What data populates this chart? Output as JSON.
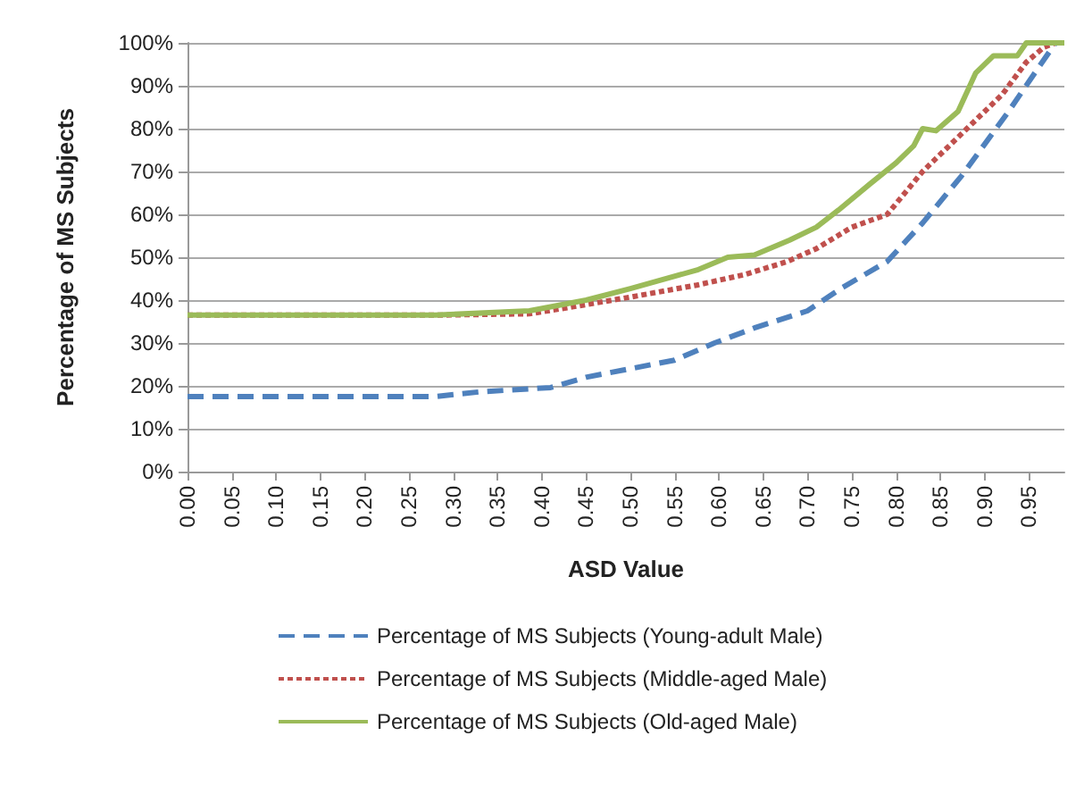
{
  "chart_data": {
    "type": "line",
    "xlabel": "ASD Value",
    "ylabel": "Percentage of MS Subjects",
    "xlim": [
      0,
      0.99
    ],
    "xticks": [
      {
        "value": 0,
        "label": "0.00"
      },
      {
        "value": 0.05,
        "label": "0.05"
      },
      {
        "value": 0.1,
        "label": "0.10"
      },
      {
        "value": 0.15,
        "label": "0.15"
      },
      {
        "value": 0.2,
        "label": "0.20"
      },
      {
        "value": 0.25,
        "label": "0.25"
      },
      {
        "value": 0.3,
        "label": "0.30"
      },
      {
        "value": 0.35,
        "label": "0.35"
      },
      {
        "value": 0.4,
        "label": "0.40"
      },
      {
        "value": 0.45,
        "label": "0.45"
      },
      {
        "value": 0.5,
        "label": "0.50"
      },
      {
        "value": 0.55,
        "label": "0.55"
      },
      {
        "value": 0.6,
        "label": "0.60"
      },
      {
        "value": 0.65,
        "label": "0.65"
      },
      {
        "value": 0.7,
        "label": "0.70"
      },
      {
        "value": 0.75,
        "label": "0.75"
      },
      {
        "value": 0.8,
        "label": "0.80"
      },
      {
        "value": 0.85,
        "label": "0.85"
      },
      {
        "value": 0.9,
        "label": "0.90"
      },
      {
        "value": 0.95,
        "label": "0.95"
      }
    ],
    "ylim": [
      0,
      100
    ],
    "yticks": [
      {
        "value": 0,
        "label": "0%"
      },
      {
        "value": 10,
        "label": "10%"
      },
      {
        "value": 20,
        "label": "20%"
      },
      {
        "value": 30,
        "label": "30%"
      },
      {
        "value": 40,
        "label": "40%"
      },
      {
        "value": 50,
        "label": "50%"
      },
      {
        "value": 60,
        "label": "60%"
      },
      {
        "value": 70,
        "label": "70%"
      },
      {
        "value": 80,
        "label": "80%"
      },
      {
        "value": 90,
        "label": "90%"
      },
      {
        "value": 100,
        "label": "100%"
      }
    ],
    "grid": "y",
    "legend": "bottom",
    "marker": "none",
    "series": [
      {
        "name": "Percentage of MS Subjects (Young-adult Male)",
        "color": "#4f81bd",
        "line_style": "dashed",
        "x": [
          0,
          0.28,
          0.33,
          0.41,
          0.45,
          0.5,
          0.55,
          0.595,
          0.64,
          0.7,
          0.74,
          0.79,
          0.83,
          0.874,
          0.927,
          0.96,
          0.98,
          0.99
        ],
        "values": [
          17.5,
          17.5,
          18.6,
          19.6,
          22,
          24,
          26,
          30,
          33.5,
          37.5,
          43,
          49,
          58,
          69,
          84,
          94,
          100,
          100
        ]
      },
      {
        "name": "Percentage of MS Subjects (Middle-aged Male)",
        "color": "#c0504d",
        "line_style": "dotted",
        "x": [
          0,
          0.28,
          0.386,
          0.44,
          0.5,
          0.575,
          0.63,
          0.677,
          0.71,
          0.75,
          0.79,
          0.83,
          0.88,
          0.92,
          0.947,
          0.967,
          0.98,
          0.99
        ],
        "values": [
          36.5,
          36.5,
          36.8,
          38.6,
          40.7,
          43.5,
          46,
          49,
          52,
          57,
          60,
          70,
          80,
          88,
          95.5,
          99,
          100,
          100
        ]
      },
      {
        "name": "Percentage of MS Subjects (Old-aged Male)",
        "color": "#9bbb59",
        "line_style": "solid",
        "x": [
          0,
          0.28,
          0.386,
          0.45,
          0.5,
          0.575,
          0.61,
          0.64,
          0.68,
          0.71,
          0.735,
          0.77,
          0.8,
          0.82,
          0.83,
          0.845,
          0.87,
          0.89,
          0.91,
          0.937,
          0.947,
          0.99
        ],
        "values": [
          36.5,
          36.5,
          37.5,
          40,
          42.7,
          47,
          50,
          50.5,
          54,
          57,
          61,
          67,
          72,
          76,
          80,
          79.5,
          84,
          93,
          97,
          97,
          100,
          100
        ]
      }
    ]
  }
}
